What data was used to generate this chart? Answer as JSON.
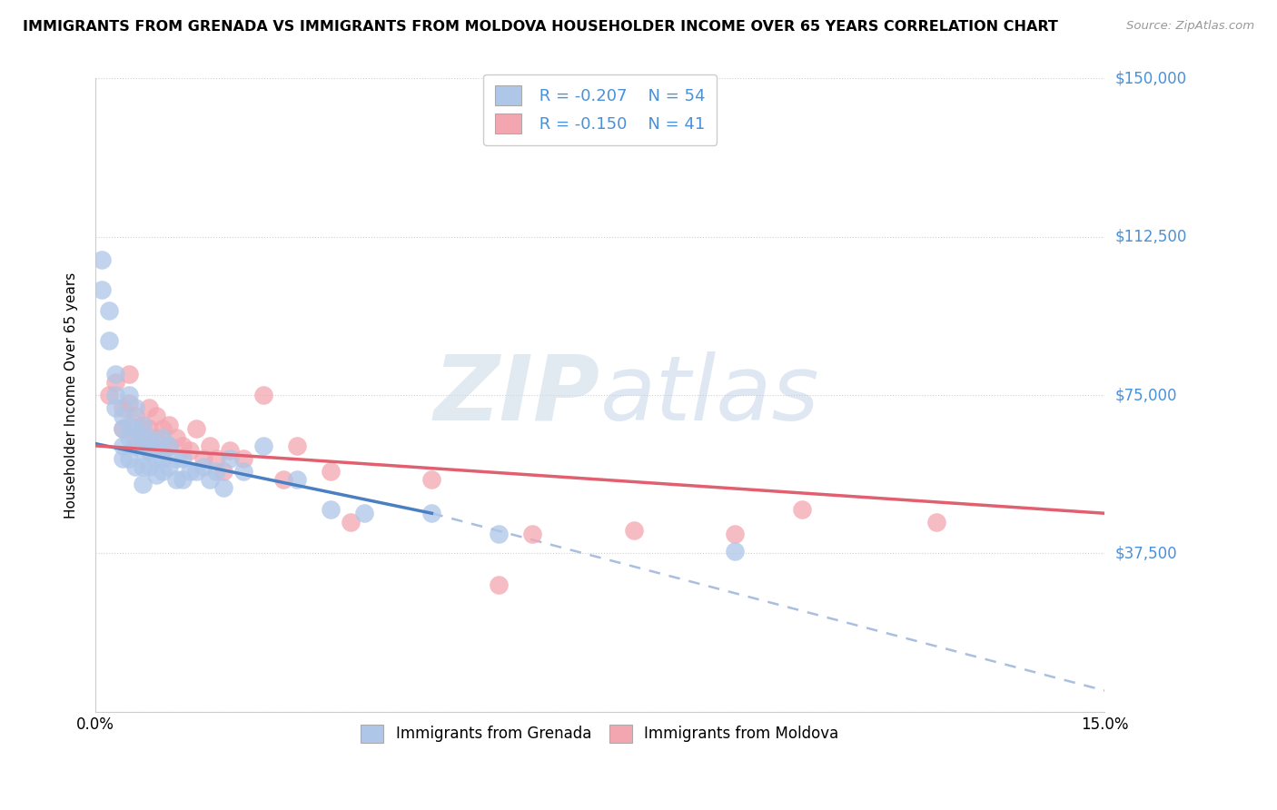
{
  "title": "IMMIGRANTS FROM GRENADA VS IMMIGRANTS FROM MOLDOVA HOUSEHOLDER INCOME OVER 65 YEARS CORRELATION CHART",
  "source": "Source: ZipAtlas.com",
  "ylabel": "Householder Income Over 65 years",
  "xlim": [
    0.0,
    0.15
  ],
  "ylim": [
    0,
    150000
  ],
  "yticks": [
    0,
    37500,
    75000,
    112500,
    150000
  ],
  "ytick_labels": [
    "",
    "$37,500",
    "$75,000",
    "$112,500",
    "$150,000"
  ],
  "xticks": [
    0.0,
    0.03,
    0.06,
    0.09,
    0.12,
    0.15
  ],
  "xtick_labels": [
    "0.0%",
    "",
    "",
    "",
    "",
    "15.0%"
  ],
  "color_grenada": "#aec6e8",
  "color_moldova": "#f4a6b0",
  "color_blue_line": "#4a7fc1",
  "color_pink_line": "#e06070",
  "color_dashed_line": "#aabfdf",
  "watermark_zip": "ZIP",
  "watermark_atlas": "atlas",
  "grenada_x": [
    0.001,
    0.001,
    0.002,
    0.002,
    0.003,
    0.003,
    0.003,
    0.004,
    0.004,
    0.004,
    0.004,
    0.005,
    0.005,
    0.005,
    0.005,
    0.006,
    0.006,
    0.006,
    0.006,
    0.007,
    0.007,
    0.007,
    0.007,
    0.007,
    0.008,
    0.008,
    0.008,
    0.009,
    0.009,
    0.009,
    0.01,
    0.01,
    0.01,
    0.011,
    0.011,
    0.012,
    0.012,
    0.013,
    0.013,
    0.014,
    0.015,
    0.016,
    0.017,
    0.018,
    0.019,
    0.02,
    0.022,
    0.025,
    0.03,
    0.035,
    0.04,
    0.05,
    0.06,
    0.095
  ],
  "grenada_y": [
    107000,
    100000,
    95000,
    88000,
    80000,
    75000,
    72000,
    70000,
    67000,
    63000,
    60000,
    75000,
    68000,
    65000,
    60000,
    72000,
    67000,
    63000,
    58000,
    68000,
    65000,
    62000,
    58000,
    54000,
    65000,
    62000,
    58000,
    63000,
    60000,
    56000,
    65000,
    60000,
    57000,
    63000,
    58000,
    60000,
    55000,
    60000,
    55000,
    57000,
    57000,
    58000,
    55000,
    57000,
    53000,
    60000,
    57000,
    63000,
    55000,
    48000,
    47000,
    47000,
    42000,
    38000
  ],
  "moldova_x": [
    0.002,
    0.003,
    0.004,
    0.004,
    0.005,
    0.005,
    0.006,
    0.006,
    0.007,
    0.007,
    0.008,
    0.008,
    0.008,
    0.009,
    0.009,
    0.01,
    0.01,
    0.011,
    0.011,
    0.012,
    0.013,
    0.014,
    0.015,
    0.016,
    0.017,
    0.018,
    0.019,
    0.02,
    0.022,
    0.025,
    0.028,
    0.03,
    0.035,
    0.038,
    0.05,
    0.06,
    0.065,
    0.08,
    0.095,
    0.105,
    0.125
  ],
  "moldova_y": [
    75000,
    78000,
    72000,
    67000,
    80000,
    73000,
    70000,
    65000,
    68000,
    63000,
    72000,
    67000,
    62000,
    70000,
    65000,
    67000,
    62000,
    68000,
    63000,
    65000,
    63000,
    62000,
    67000,
    60000,
    63000,
    60000,
    57000,
    62000,
    60000,
    75000,
    55000,
    63000,
    57000,
    45000,
    55000,
    30000,
    42000,
    43000,
    42000,
    48000,
    45000
  ],
  "blue_line_x0": 0.0,
  "blue_line_y0": 63500,
  "blue_line_x1": 0.05,
  "blue_line_y1": 47000,
  "dashed_line_x0": 0.05,
  "dashed_line_y0": 47000,
  "dashed_line_x1": 0.15,
  "dashed_line_y1": 5000,
  "pink_line_x0": 0.0,
  "pink_line_y0": 63000,
  "pink_line_x1": 0.15,
  "pink_line_y1": 47000
}
